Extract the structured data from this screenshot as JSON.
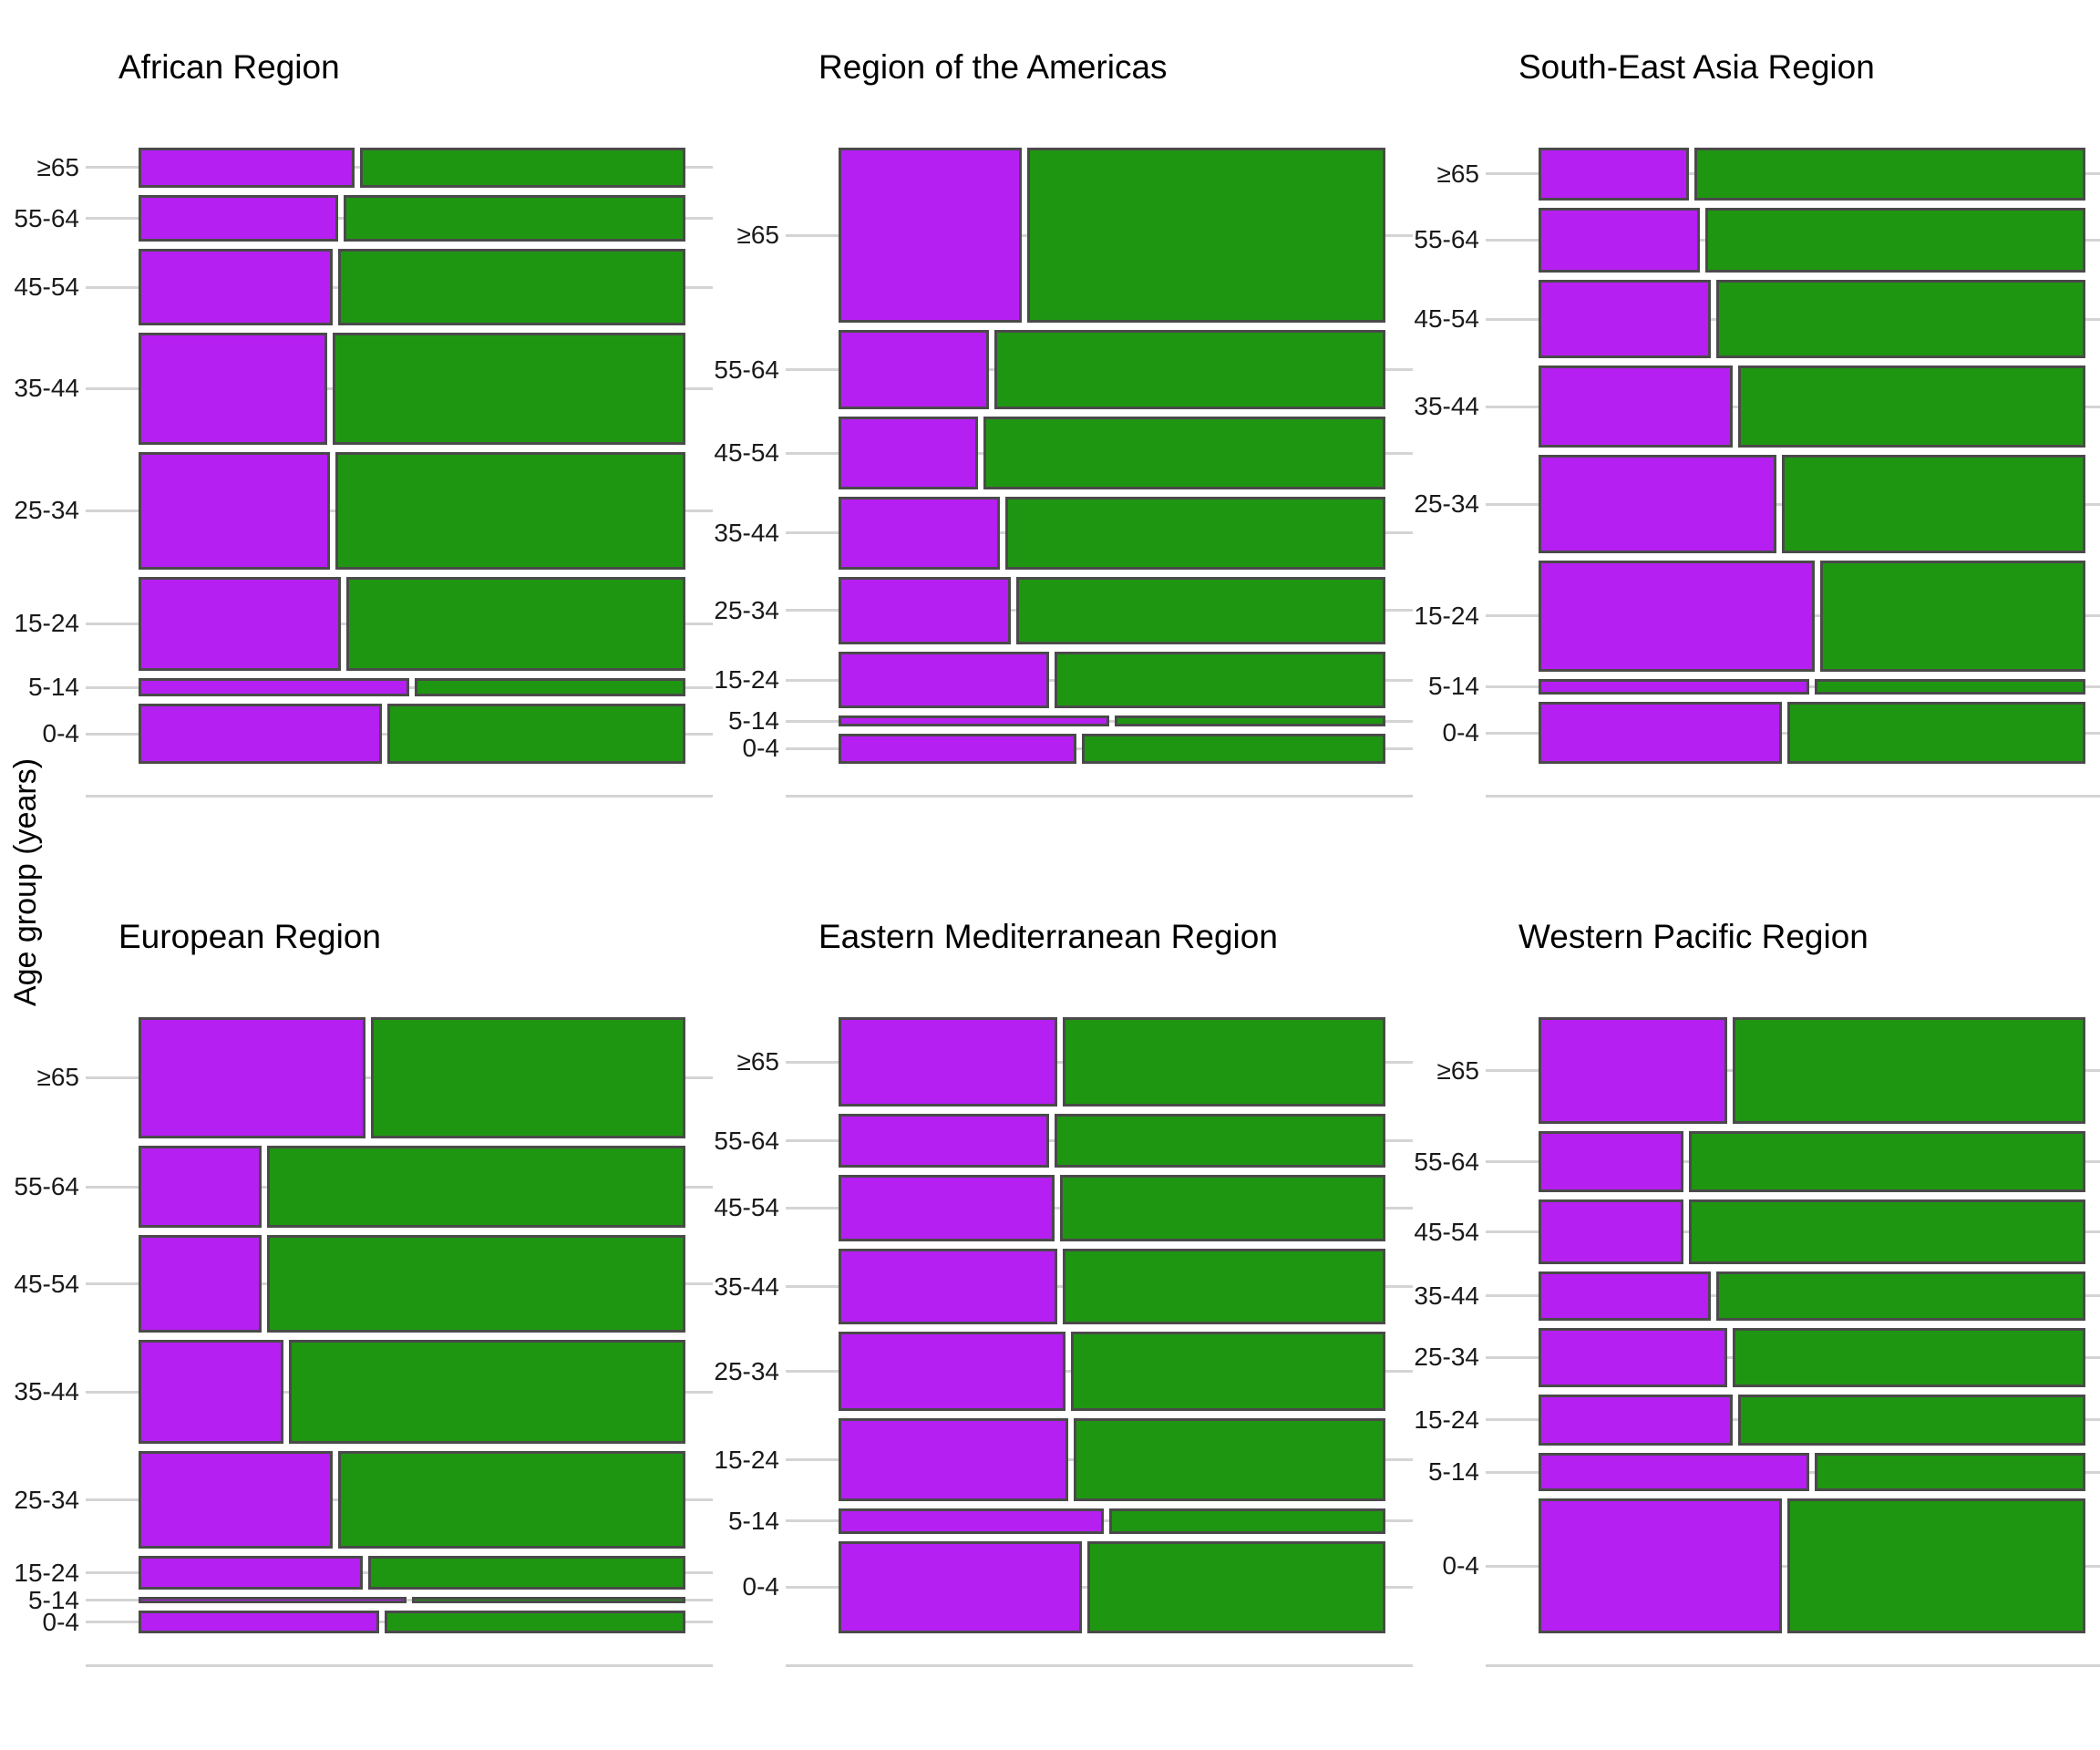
{
  "figure": {
    "y_axis_label": "Age group (years)",
    "background_color": "#ffffff"
  },
  "chart_data": {
    "type": "mosaic",
    "title": "",
    "xlabel": "",
    "ylabel": "Age group (years)",
    "layout": {
      "rows": 2,
      "cols": 3,
      "legend": "none",
      "grid": "light horizontal gridlines at each age band center plus baseline"
    },
    "colors": {
      "purple_segment": "#b51ff2",
      "green_segment": "#1f9612",
      "segment_border": "#4a4a4a",
      "gridline": "#d4d4d4",
      "text": "#1a1a1a"
    },
    "age_groups_top_to_bottom": [
      "≥65",
      "55-64",
      "45-54",
      "35-44",
      "25-34",
      "15-24",
      "5-14",
      "0-4"
    ],
    "value_note": "height_pct = bar height as % of panel stack (proportional to cases in age group); purple_frac = fraction of bar width that is purple (green = 1 - purple_frac)",
    "panels": [
      {
        "name": "African Region",
        "height_pct": [
          7.6,
          8.7,
          13.4,
          19.1,
          20.0,
          16.3,
          4.1,
          10.8
        ],
        "purple_frac": [
          0.4,
          0.37,
          0.36,
          0.35,
          0.355,
          0.375,
          0.5,
          0.45
        ]
      },
      {
        "name": "Region of the Americas",
        "height_pct": [
          29.3,
          13.9,
          12.8,
          12.8,
          12.1,
          10.2,
          2.9,
          6.0
        ],
        "purple_frac": [
          0.34,
          0.28,
          0.26,
          0.3,
          0.32,
          0.39,
          0.5,
          0.44
        ]
      },
      {
        "name": "South-East Asia Region",
        "height_pct": [
          9.6,
          11.6,
          13.8,
          14.3,
          16.9,
          19.0,
          3.7,
          11.1
        ],
        "purple_frac": [
          0.28,
          0.3,
          0.32,
          0.36,
          0.44,
          0.51,
          0.5,
          0.45
        ]
      },
      {
        "name": "European Region",
        "height_pct": [
          20.6,
          14.4,
          16.8,
          17.8,
          16.8,
          6.6,
          2.2,
          4.8
        ],
        "purple_frac": [
          0.42,
          0.23,
          0.23,
          0.27,
          0.36,
          0.415,
          0.495,
          0.445
        ]
      },
      {
        "name": "Eastern Mediterranean Region",
        "height_pct": [
          15.5,
          9.8,
          11.8,
          13.4,
          13.9,
          14.4,
          5.2,
          16.0
        ],
        "purple_frac": [
          0.405,
          0.39,
          0.4,
          0.405,
          0.42,
          0.425,
          0.49,
          0.45
        ]
      },
      {
        "name": "Western Pacific Region",
        "height_pct": [
          18.3,
          11.0,
          11.5,
          9.0,
          10.7,
          9.4,
          7.3,
          22.8
        ],
        "purple_frac": [
          0.35,
          0.27,
          0.27,
          0.32,
          0.35,
          0.36,
          0.5,
          0.45
        ]
      }
    ]
  }
}
